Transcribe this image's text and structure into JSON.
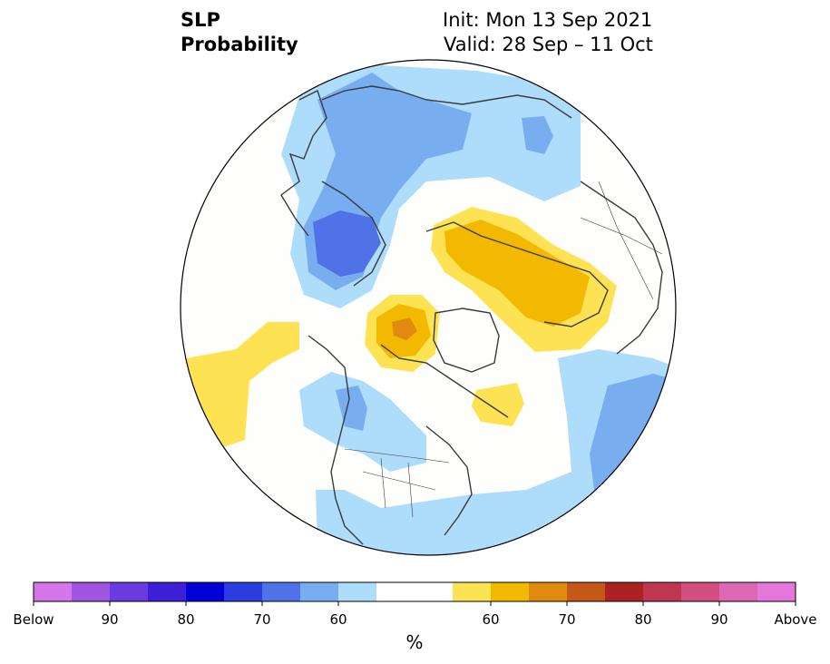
{
  "header": {
    "variable_line1": "SLP",
    "variable_line2": "Probability",
    "init": "Init: Mon 13 Sep 2021",
    "valid": "Valid: 28 Sep – 11 Oct"
  },
  "colorbar": {
    "colors": [
      "#d576e8",
      "#a055e0",
      "#6a3be0",
      "#3d1fd8",
      "#0000d6",
      "#2a3ee0",
      "#4f73e6",
      "#78aef0",
      "#aedcfb",
      "#ffffff",
      "#ffffff",
      "#fde353",
      "#f2b900",
      "#e08b10",
      "#c55816",
      "#ac2222",
      "#c03550",
      "#d04f80",
      "#dc68b4",
      "#e576da"
    ],
    "labels": [
      "Below",
      "90",
      "80",
      "70",
      "60",
      "60",
      "70",
      "80",
      "90",
      "Above"
    ],
    "unit": "%"
  },
  "map_colors": {
    "light_blue": "#aedcfb",
    "mid_blue": "#78aef0",
    "dark_blue": "#4f73e6",
    "yellow": "#fde353",
    "gold": "#f2b900",
    "orange": "#e08b10",
    "land_line": "#3a3a3a"
  }
}
